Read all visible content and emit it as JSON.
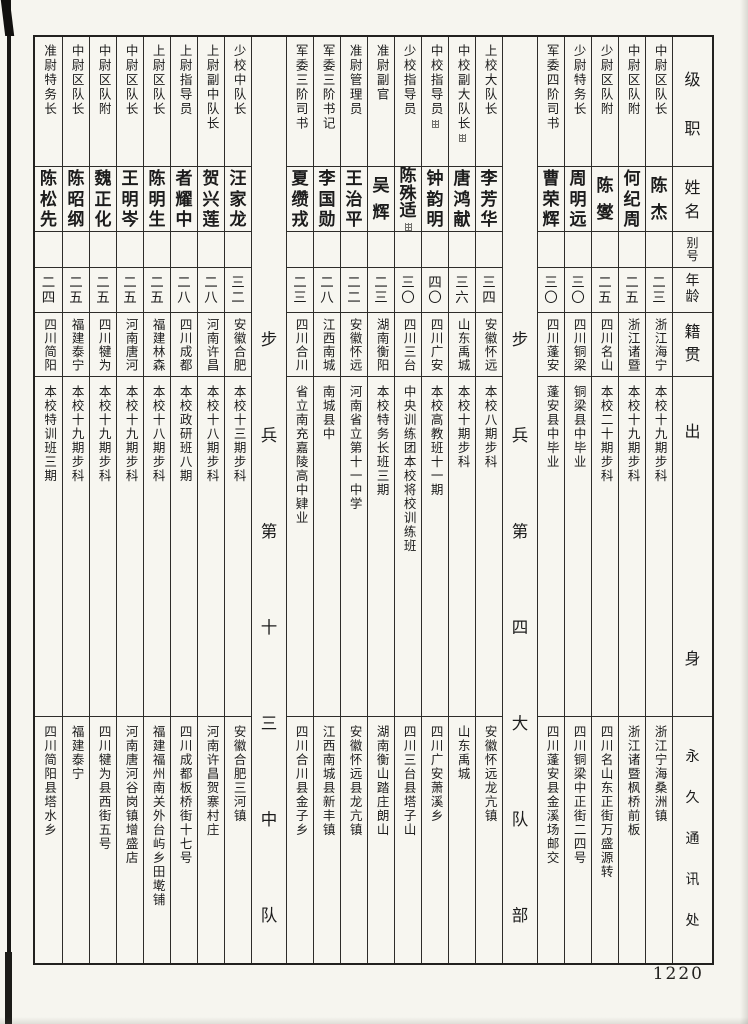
{
  "page": {
    "number": "1220"
  },
  "table": {
    "header_labels": {
      "rank": "级职",
      "name": "姓名",
      "alias": "别号",
      "age": "年龄",
      "native": "籍贯",
      "origin": "出身",
      "address": "永久通讯处"
    },
    "columns": [
      {
        "type": "person",
        "rank": "中尉区队长",
        "name": "陈杰",
        "alias": "",
        "age": "二三",
        "native": "浙江海宁",
        "origin": "本校十九期步科",
        "address": "浙江宁海桑洲镇"
      },
      {
        "type": "person",
        "rank": "中尉区队附",
        "name": "何纪周",
        "alias": "",
        "age": "二五",
        "native": "浙江诸暨",
        "origin": "本校十九期步科",
        "address": "浙江诸暨枫桥前板"
      },
      {
        "type": "person",
        "rank": "少尉区队附",
        "name": "陈燮",
        "alias": "",
        "age": "二五",
        "native": "四川名山",
        "origin": "本校二十期步科",
        "address": "四川名山东正街万盛源转"
      },
      {
        "type": "person",
        "rank": "少尉特务长",
        "name": "周明远",
        "alias": "",
        "age": "三〇",
        "native": "四川铜梁",
        "origin": "铜梁县中毕业",
        "address": "四川铜梁中正街二四号"
      },
      {
        "type": "person",
        "rank": "军委四阶司书",
        "name": "曹荣辉",
        "alias": "",
        "age": "三〇",
        "native": "四川蓬安",
        "origin": "蓬安县中毕业",
        "address": "四川蓬安县金溪场邮交"
      },
      {
        "type": "section",
        "title": "步兵第四大队部"
      },
      {
        "type": "person",
        "rank": "上校大队长",
        "name": "李芳华",
        "alias": "",
        "age": "三四",
        "native": "安徽怀远",
        "origin": "本校八期步科",
        "address": "安徽怀远龙亢镇"
      },
      {
        "type": "person",
        "rank": "中校副大队长",
        "rank_mark": true,
        "name": "唐鸿献",
        "alias": "",
        "age": "三六",
        "native": "山东禹城",
        "origin": "本校十期步科",
        "address": "山东禹城"
      },
      {
        "type": "person",
        "rank": "中校指导员",
        "rank_mark": true,
        "name": "钟韵明",
        "alias": "",
        "age": "四〇",
        "native": "四川广安",
        "origin": "本校高教班十一期",
        "address": "四川广安萧溪乡"
      },
      {
        "type": "person",
        "rank": "少校指导员",
        "name": "陈殊适",
        "name_mark": true,
        "alias": "",
        "age": "三〇",
        "native": "四川三台",
        "origin": "中央训练团本校将校训练班",
        "address": "四川三台县塔子山"
      },
      {
        "type": "person",
        "rank": "准尉副官",
        "name": "吴辉",
        "alias": "",
        "age": "二三",
        "native": "湖南衡阳",
        "origin": "本校特务长班三期",
        "address": "湖南衡山踏庄朗山"
      },
      {
        "type": "person",
        "rank": "准尉管理员",
        "name": "王治平",
        "alias": "",
        "age": "二二",
        "native": "安徽怀远",
        "origin": "河南省立第十一中学",
        "address": "安徽怀远县龙亢镇"
      },
      {
        "type": "person",
        "rank": "军委三阶书记",
        "name": "李国勋",
        "alias": "",
        "age": "二八",
        "native": "江西南城",
        "origin": "南城县中",
        "address": "江西南城县新丰镇"
      },
      {
        "type": "person",
        "rank": "军委三阶司书",
        "name": "夏缵戎",
        "alias": "",
        "age": "二三",
        "native": "四川合川",
        "origin": "省立南充嘉陵高中肄业",
        "address": "四川合川县金子乡"
      },
      {
        "type": "section",
        "title": "步兵第十三中队"
      },
      {
        "type": "person",
        "rank": "少校中队长",
        "name": "汪家龙",
        "alias": "",
        "age": "三二",
        "native": "安徽合肥",
        "origin": "本校十三期步科",
        "address": "安徽合肥三河镇"
      },
      {
        "type": "person",
        "rank": "上尉副中队长",
        "name": "贺兴莲",
        "alias": "",
        "age": "二八",
        "native": "河南许昌",
        "origin": "本校十八期步科",
        "address": "河南许昌贺寨村庄"
      },
      {
        "type": "person",
        "rank": "上尉指导员",
        "name": "者耀中",
        "alias": "",
        "age": "二八",
        "native": "四川成都",
        "origin": "本校政研班八期",
        "address": "四川成都板桥街十七号"
      },
      {
        "type": "person",
        "rank": "上尉区队长",
        "name": "陈明生",
        "alias": "",
        "age": "二五",
        "native": "福建林森",
        "origin": "本校十八期步科",
        "address": "福建福州南关外台屿乡田墘铺"
      },
      {
        "type": "person",
        "rank": "中尉区队长",
        "name": "王明岑",
        "alias": "",
        "age": "二五",
        "native": "河南唐河",
        "origin": "本校十九期步科",
        "address": "河南唐河谷岗镇增盛店"
      },
      {
        "type": "person",
        "rank": "中尉区队附",
        "name": "魏正化",
        "alias": "",
        "age": "二五",
        "native": "四川犍为",
        "origin": "本校十九期步科",
        "address": "四川犍为县西街五号"
      },
      {
        "type": "person",
        "rank": "中尉区队长",
        "name": "陈昭纲",
        "alias": "",
        "age": "二五",
        "native": "福建泰宁",
        "origin": "本校十九期步科",
        "address": "福建泰宁"
      },
      {
        "type": "person",
        "rank": "准尉特务长",
        "name": "陈松先",
        "alias": "",
        "age": "二四",
        "native": "四川简阳",
        "origin": "本校特训班三期",
        "address": "四川简阳县塔水乡"
      }
    ]
  }
}
